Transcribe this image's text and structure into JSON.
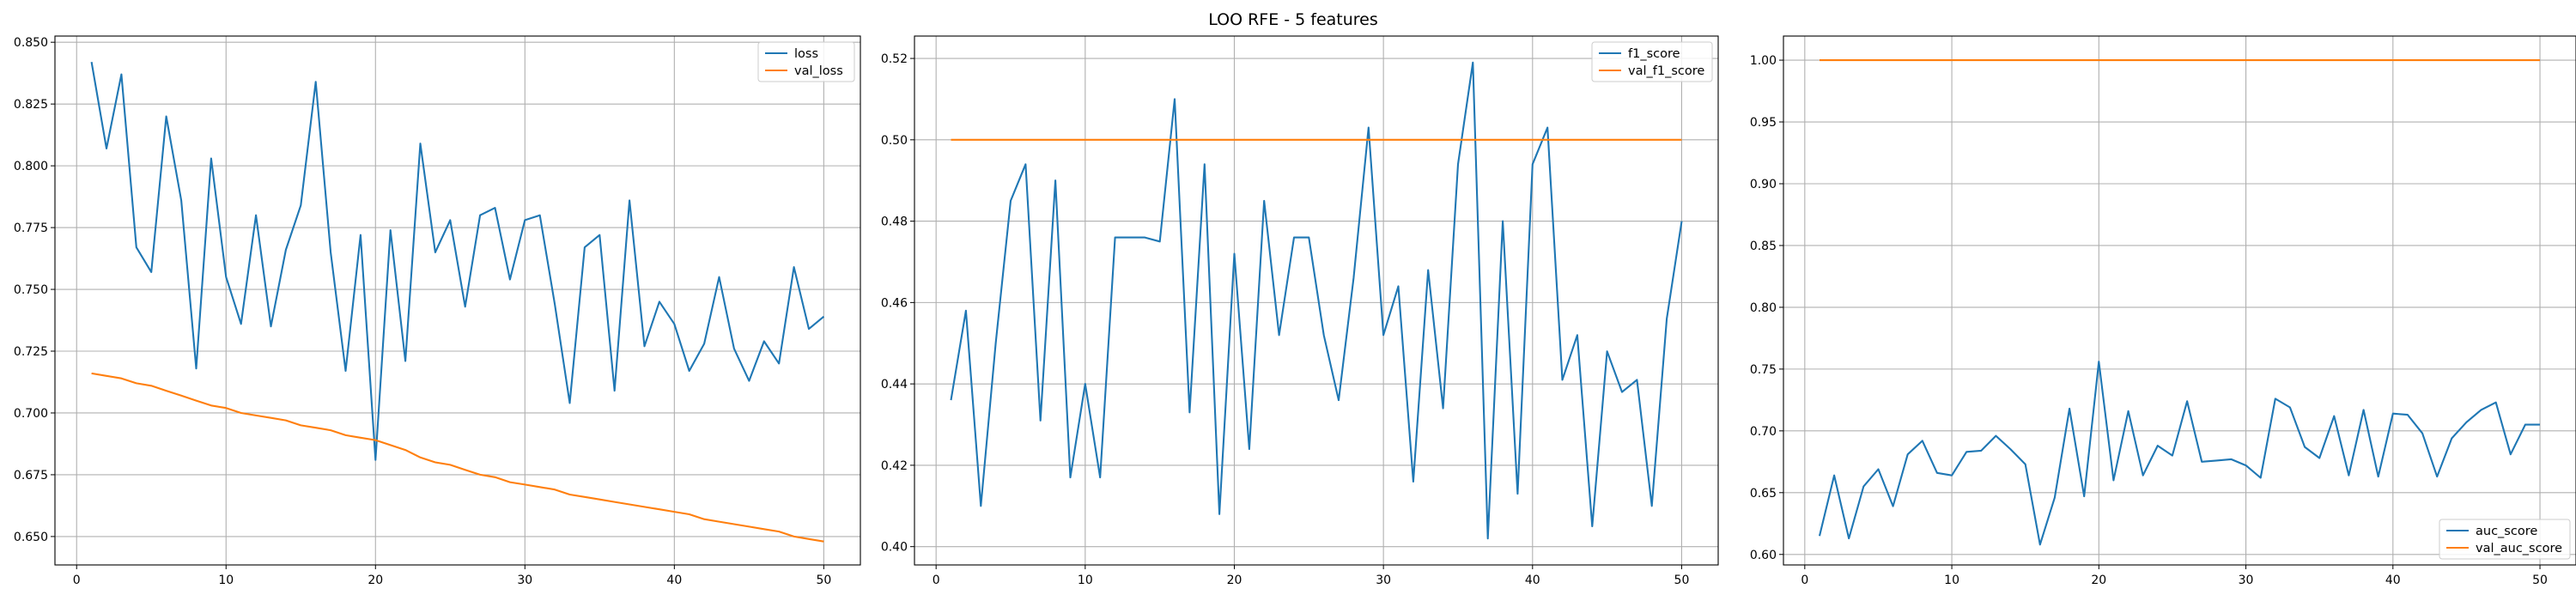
{
  "figure": {
    "title": "LOO RFE - 5 features"
  },
  "colors": {
    "blue": "#1f77b4",
    "orange": "#ff7f0e",
    "grid": "#b0b0b0"
  },
  "chart_data": [
    {
      "type": "line",
      "title": "",
      "xlabel": "",
      "ylabel": "",
      "xlim": [
        -1.45,
        52.45
      ],
      "ylim": [
        0.6385,
        0.8525
      ],
      "xticks": [
        0,
        10,
        20,
        30,
        40,
        50
      ],
      "xtick_labels": [
        "0",
        "10",
        "20",
        "30",
        "40",
        "50"
      ],
      "yticks": [
        0.65,
        0.675,
        0.7,
        0.725,
        0.75,
        0.775,
        0.8,
        0.825,
        0.85
      ],
      "ytick_labels": [
        "0.650",
        "0.675",
        "0.700",
        "0.725",
        "0.750",
        "0.775",
        "0.800",
        "0.825",
        "0.850"
      ],
      "grid": true,
      "legend": "upper right",
      "x": [
        1,
        2,
        3,
        4,
        5,
        6,
        7,
        8,
        9,
        10,
        11,
        12,
        13,
        14,
        15,
        16,
        17,
        18,
        19,
        20,
        21,
        22,
        23,
        24,
        25,
        26,
        27,
        28,
        29,
        30,
        31,
        32,
        33,
        34,
        35,
        36,
        37,
        38,
        39,
        40,
        41,
        42,
        43,
        44,
        45,
        46,
        47,
        48,
        49,
        50
      ],
      "series": [
        {
          "name": "loss",
          "color": "#1f77b4",
          "values": [
            0.842,
            0.807,
            0.837,
            0.767,
            0.757,
            0.82,
            0.786,
            0.718,
            0.803,
            0.755,
            0.736,
            0.78,
            0.735,
            0.766,
            0.784,
            0.834,
            0.765,
            0.717,
            0.772,
            0.681,
            0.774,
            0.721,
            0.809,
            0.765,
            0.778,
            0.743,
            0.78,
            0.783,
            0.754,
            0.778,
            0.78,
            0.744,
            0.704,
            0.767,
            0.772,
            0.709,
            0.786,
            0.727,
            0.745,
            0.736,
            0.717,
            0.728,
            0.755,
            0.726,
            0.713,
            0.729,
            0.72,
            0.759,
            0.734,
            0.739
          ]
        },
        {
          "name": "val_loss",
          "color": "#ff7f0e",
          "values": [
            0.716,
            0.715,
            0.714,
            0.712,
            0.711,
            0.709,
            0.707,
            0.705,
            0.703,
            0.702,
            0.7,
            0.699,
            0.698,
            0.697,
            0.695,
            0.694,
            0.693,
            0.691,
            0.69,
            0.689,
            0.687,
            0.685,
            0.682,
            0.68,
            0.679,
            0.677,
            0.675,
            0.674,
            0.672,
            0.671,
            0.67,
            0.669,
            0.667,
            0.666,
            0.665,
            0.664,
            0.663,
            0.662,
            0.661,
            0.66,
            0.659,
            0.657,
            0.656,
            0.655,
            0.654,
            0.653,
            0.652,
            0.65,
            0.649,
            0.648
          ]
        }
      ]
    },
    {
      "type": "line",
      "title": "",
      "xlabel": "",
      "ylabel": "",
      "xlim": [
        -1.45,
        52.45
      ],
      "ylim": [
        0.3955,
        0.5255
      ],
      "xticks": [
        0,
        10,
        20,
        30,
        40,
        50
      ],
      "xtick_labels": [
        "0",
        "10",
        "20",
        "30",
        "40",
        "50"
      ],
      "yticks": [
        0.4,
        0.42,
        0.44,
        0.46,
        0.48,
        0.5,
        0.52
      ],
      "ytick_labels": [
        "0.40",
        "0.42",
        "0.44",
        "0.46",
        "0.48",
        "0.50",
        "0.52"
      ],
      "grid": true,
      "legend": "upper right",
      "x": [
        1,
        2,
        3,
        4,
        5,
        6,
        7,
        8,
        9,
        10,
        11,
        12,
        13,
        14,
        15,
        16,
        17,
        18,
        19,
        20,
        21,
        22,
        23,
        24,
        25,
        26,
        27,
        28,
        29,
        30,
        31,
        32,
        33,
        34,
        35,
        36,
        37,
        38,
        39,
        40,
        41,
        42,
        43,
        44,
        45,
        46,
        47,
        48,
        49,
        50
      ],
      "series": [
        {
          "name": "f1_score",
          "color": "#1f77b4",
          "values": [
            0.436,
            0.458,
            0.41,
            0.45,
            0.485,
            0.494,
            0.431,
            0.49,
            0.417,
            0.44,
            0.417,
            0.476,
            0.476,
            0.476,
            0.475,
            0.51,
            0.433,
            0.494,
            0.408,
            0.472,
            0.424,
            0.485,
            0.452,
            0.476,
            0.476,
            0.452,
            0.436,
            0.466,
            0.503,
            0.452,
            0.464,
            0.416,
            0.468,
            0.434,
            0.494,
            0.519,
            0.402,
            0.48,
            0.413,
            0.494,
            0.503,
            0.441,
            0.452,
            0.405,
            0.448,
            0.438,
            0.441,
            0.41,
            0.456,
            0.48
          ]
        },
        {
          "name": "val_f1_score",
          "color": "#ff7f0e",
          "values": [
            0.5,
            0.5,
            0.5,
            0.5,
            0.5,
            0.5,
            0.5,
            0.5,
            0.5,
            0.5,
            0.5,
            0.5,
            0.5,
            0.5,
            0.5,
            0.5,
            0.5,
            0.5,
            0.5,
            0.5,
            0.5,
            0.5,
            0.5,
            0.5,
            0.5,
            0.5,
            0.5,
            0.5,
            0.5,
            0.5,
            0.5,
            0.5,
            0.5,
            0.5,
            0.5,
            0.5,
            0.5,
            0.5,
            0.5,
            0.5,
            0.5,
            0.5,
            0.5,
            0.5,
            0.5,
            0.5,
            0.5,
            0.5,
            0.5,
            0.5
          ]
        }
      ]
    },
    {
      "type": "line",
      "title": "",
      "xlabel": "",
      "ylabel": "",
      "xlim": [
        -1.45,
        52.45
      ],
      "ylim": [
        0.5915,
        1.0195
      ],
      "xticks": [
        0,
        10,
        20,
        30,
        40,
        50
      ],
      "xtick_labels": [
        "0",
        "10",
        "20",
        "30",
        "40",
        "50"
      ],
      "yticks": [
        0.6,
        0.65,
        0.7,
        0.75,
        0.8,
        0.85,
        0.9,
        0.95,
        1.0
      ],
      "ytick_labels": [
        "0.60",
        "0.65",
        "0.70",
        "0.75",
        "0.80",
        "0.85",
        "0.90",
        "0.95",
        "1.00"
      ],
      "grid": true,
      "legend": "lower right",
      "x": [
        1,
        2,
        3,
        4,
        5,
        6,
        7,
        8,
        9,
        10,
        11,
        12,
        13,
        14,
        15,
        16,
        17,
        18,
        19,
        20,
        21,
        22,
        23,
        24,
        25,
        26,
        27,
        28,
        29,
        30,
        31,
        32,
        33,
        34,
        35,
        36,
        37,
        38,
        39,
        40,
        41,
        42,
        43,
        44,
        45,
        46,
        47,
        48,
        49,
        50
      ],
      "series": [
        {
          "name": "auc_score",
          "color": "#1f77b4",
          "values": [
            0.615,
            0.664,
            0.613,
            0.655,
            0.669,
            0.639,
            0.681,
            0.692,
            0.666,
            0.664,
            0.683,
            0.684,
            0.696,
            0.685,
            0.673,
            0.608,
            0.646,
            0.718,
            0.647,
            0.756,
            0.66,
            0.716,
            0.664,
            0.688,
            0.68,
            0.724,
            0.675,
            0.676,
            0.677,
            0.672,
            0.662,
            0.726,
            0.719,
            0.687,
            0.678,
            0.712,
            0.664,
            0.717,
            0.663,
            0.714,
            0.713,
            0.698,
            0.663,
            0.694,
            0.707,
            0.717,
            0.723,
            0.681,
            0.705,
            0.705
          ]
        },
        {
          "name": "val_auc_score",
          "color": "#ff7f0e",
          "values": [
            1.0,
            1.0,
            1.0,
            1.0,
            1.0,
            1.0,
            1.0,
            1.0,
            1.0,
            1.0,
            1.0,
            1.0,
            1.0,
            1.0,
            1.0,
            1.0,
            1.0,
            1.0,
            1.0,
            1.0,
            1.0,
            1.0,
            1.0,
            1.0,
            1.0,
            1.0,
            1.0,
            1.0,
            1.0,
            1.0,
            1.0,
            1.0,
            1.0,
            1.0,
            1.0,
            1.0,
            1.0,
            1.0,
            1.0,
            1.0,
            1.0,
            1.0,
            1.0,
            1.0,
            1.0,
            1.0,
            1.0,
            1.0,
            1.0,
            1.0
          ]
        }
      ]
    }
  ]
}
